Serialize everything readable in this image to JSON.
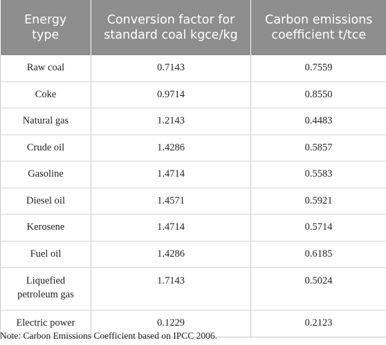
{
  "table": {
    "headers": [
      [
        "Energy",
        "type"
      ],
      [
        "Conversion factor for",
        "standard coal kgce/kg"
      ],
      [
        "Carbon emissions",
        "coefficient t/tce"
      ]
    ],
    "rows": [
      {
        "energy": "Raw coal",
        "conversion": "0.7143",
        "emission": "0.7559"
      },
      {
        "energy": "Coke",
        "conversion": "0.9714",
        "emission": "0.8550"
      },
      {
        "energy": "Natural gas",
        "conversion": "1.2143",
        "emission": "0.4483"
      },
      {
        "energy": "Crude oil",
        "conversion": "1.4286",
        "emission": "0.5857"
      },
      {
        "energy": "Gasoline",
        "conversion": "1.4714",
        "emission": "0.5583"
      },
      {
        "energy": "Diesel oil",
        "conversion": "1.4571",
        "emission": "0.5921"
      },
      {
        "energy": "Kerosene",
        "conversion": "1.4714",
        "emission": "0.5714"
      },
      {
        "energy": "Fuel oil",
        "conversion": "1.4286",
        "emission": "0.6185"
      },
      {
        "energy_lines": [
          "Liquefied",
          "petroleum gas"
        ],
        "conversion": "1.7143",
        "emission": "0.5024"
      },
      {
        "energy": "Electric power",
        "conversion": "0.1229",
        "emission": "0.2123"
      }
    ]
  },
  "note": "Note: Carbon Emissions Coefficient based on IPCC 2006."
}
